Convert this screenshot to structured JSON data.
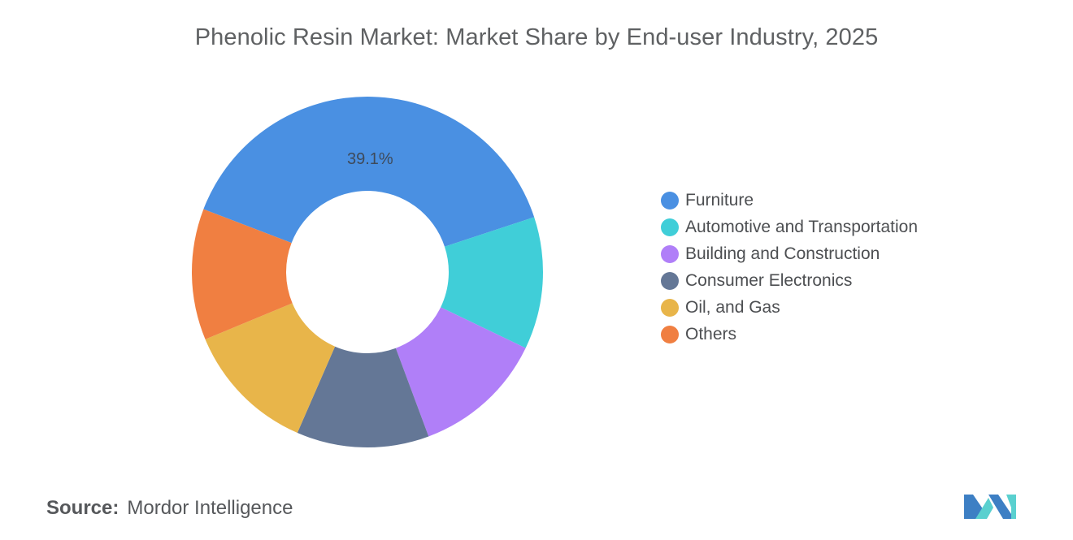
{
  "title": "Phenolic Resin Market: Market Share by End-user Industry, 2025",
  "source": {
    "label": "Source:",
    "value": "Mordor Intelligence"
  },
  "chart_data": {
    "type": "pie",
    "subtype": "donut",
    "title": "Phenolic Resin Market: Market Share by End-user Industry, 2025",
    "labels": [
      "Furniture",
      "Automotive and Transportation",
      "Building and Construction",
      "Consumer Electronics",
      "Oil, and Gas",
      "Others"
    ],
    "values": [
      39.1,
      12.2,
      12.2,
      12.2,
      12.2,
      12.1
    ],
    "colors": [
      "#4a90e2",
      "#40ced8",
      "#b07ff8",
      "#647796",
      "#e8b54a",
      "#f07f41"
    ],
    "data_labels": [
      "39.1%",
      "",
      "",
      "",
      "",
      ""
    ],
    "legend_position": "right"
  },
  "logo": {
    "name": "mordor-intelligence-logo",
    "colors": [
      "#3d7fc4",
      "#5ad0cf"
    ]
  }
}
